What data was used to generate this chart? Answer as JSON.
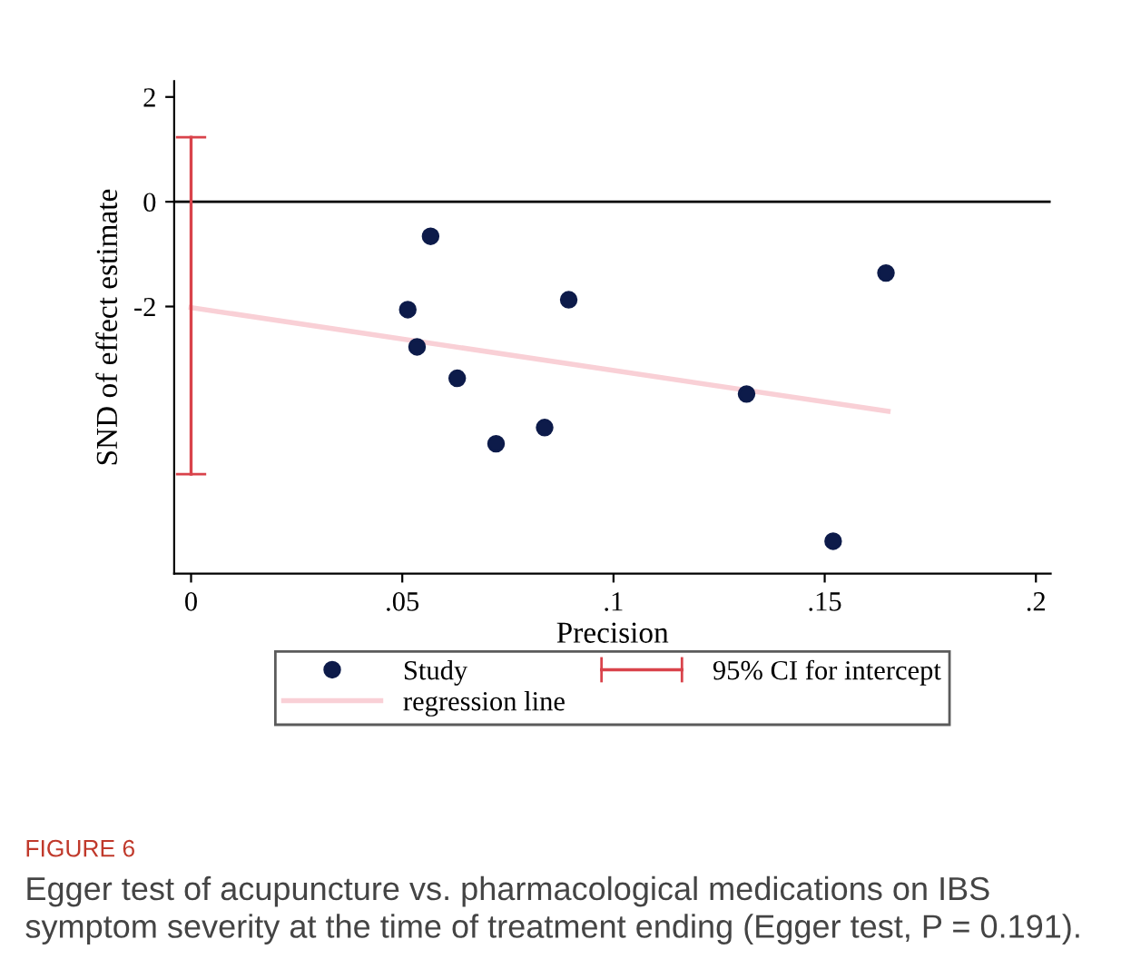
{
  "chart_data": {
    "type": "scatter",
    "xlabel": "Precision",
    "ylabel": "SND of effect estimate",
    "xlim": [
      -0.004,
      0.2035
    ],
    "ylim": [
      -7.1,
      2.3
    ],
    "xticks": [
      0,
      {
        "value": 0.05,
        "label": ".05"
      },
      {
        "value": 0.1,
        "label": ".1"
      },
      {
        "value": 0.15,
        "label": ".15"
      },
      {
        "value": 0.2,
        "label": ".2"
      }
    ],
    "yticks": [
      -2,
      0,
      2
    ],
    "series": [
      {
        "name": "Study",
        "color": "#0d1b4a",
        "marker": "circle",
        "x": [
          0.0567,
          0.0513,
          0.0535,
          0.063,
          0.0722,
          0.0837,
          0.0894,
          0.1315,
          0.152,
          0.1645
        ],
        "values": [
          -0.66,
          -2.06,
          -2.77,
          -3.37,
          -4.62,
          -4.31,
          -1.87,
          -3.67,
          -6.48,
          -1.36
        ]
      },
      {
        "name": "regression line",
        "type": "line",
        "color": "#f9d0d6",
        "marker": "none",
        "x": [
          0,
          0.165
        ],
        "values": [
          -2.02,
          -4.0
        ]
      },
      {
        "name": "95% CI for intercept",
        "type": "line",
        "color": "#d9434b",
        "x": [
          0,
          0
        ],
        "values": [
          -5.2,
          1.23
        ]
      }
    ],
    "ref_lines": [
      {
        "axis": "y",
        "value": 0,
        "color": "#000000"
      }
    ],
    "legend": "bottom",
    "grid": false,
    "annotations": [
      "FIGURE 6",
      "Egger test of acupuncture vs. pharmacological medications on IBS symptom severity at the time of treatment ending (Egger test, P = 0.191)."
    ]
  }
}
